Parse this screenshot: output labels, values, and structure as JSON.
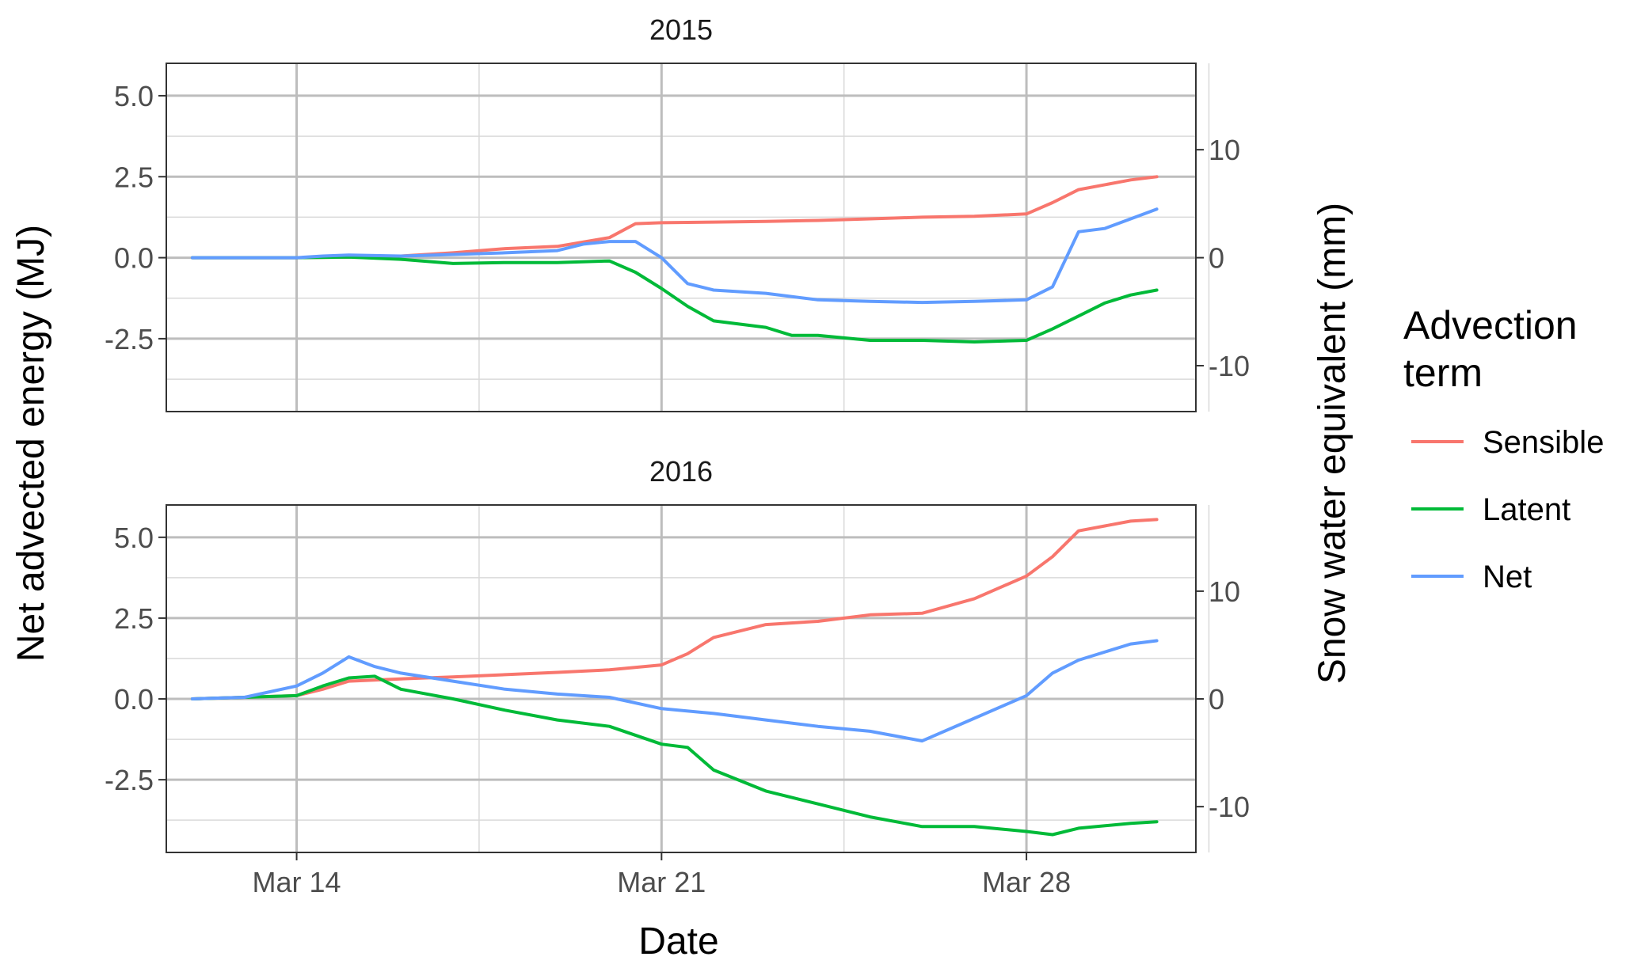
{
  "chart_data": {
    "type": "line",
    "xlabel": "Date",
    "ylabel": "Net advected energy (MJ)",
    "y2label": "Snow water equivalent (mm)",
    "x_ticks": [
      "Mar 14",
      "Mar 21",
      "Mar 28"
    ],
    "xlim": [
      "2000-03-11 12:00",
      "2000-03-31 06:00"
    ],
    "ylim": [
      -4.75,
      6.0
    ],
    "y_ticks": [
      "-2.5",
      "0.0",
      "2.5",
      "5.0"
    ],
    "y2_ticks": [
      "-10",
      "0",
      "10"
    ],
    "y2_scale_mm_per_MJ": 3.0,
    "grid": true,
    "legend": {
      "title": "Advection term",
      "title_lines": [
        "Advection",
        "term"
      ],
      "placement": "right",
      "entries": [
        {
          "label": "Sensible",
          "color": "#F8766D"
        },
        {
          "label": "Latent",
          "color": "#00BA38"
        },
        {
          "label": "Net",
          "color": "#619CFF"
        }
      ]
    },
    "panels": [
      {
        "title": "2015",
        "series": [
          {
            "name": "Sensible",
            "color": "#F8766D",
            "x": [
              "03-12",
              "03-13",
              "03-14",
              "03-15",
              "03-16",
              "03-17",
              "03-18",
              "03-19",
              "03-20",
              "03-20 12:00",
              "03-21",
              "03-22",
              "03-23",
              "03-24",
              "03-25",
              "03-26",
              "03-27",
              "03-28",
              "03-28 12:00",
              "03-29",
              "03-30",
              "03-30 12:00"
            ],
            "values": [
              0.0,
              0.0,
              0.0,
              0.02,
              0.05,
              0.15,
              0.28,
              0.35,
              0.62,
              1.05,
              1.08,
              1.1,
              1.12,
              1.15,
              1.2,
              1.25,
              1.28,
              1.35,
              1.7,
              2.1,
              2.4,
              2.5
            ]
          },
          {
            "name": "Latent",
            "color": "#00BA38",
            "x": [
              "03-12",
              "03-13",
              "03-14",
              "03-15",
              "03-16",
              "03-17",
              "03-18",
              "03-19",
              "03-20",
              "03-20 12:00",
              "03-21",
              "03-21 12:00",
              "03-22",
              "03-23",
              "03-23 12:00",
              "03-24",
              "03-25",
              "03-26",
              "03-27",
              "03-28",
              "03-28 12:00",
              "03-29",
              "03-29 12:00",
              "03-30",
              "03-30 12:00"
            ],
            "values": [
              0.0,
              0.0,
              0.0,
              0.02,
              -0.05,
              -0.18,
              -0.15,
              -0.15,
              -0.1,
              -0.45,
              -0.95,
              -1.5,
              -1.95,
              -2.15,
              -2.4,
              -2.4,
              -2.55,
              -2.55,
              -2.6,
              -2.55,
              -2.2,
              -1.8,
              -1.4,
              -1.15,
              -1.0
            ]
          },
          {
            "name": "Net",
            "color": "#619CFF",
            "x": [
              "03-12",
              "03-13",
              "03-14",
              "03-14 12:00",
              "03-15",
              "03-16",
              "03-17",
              "03-18",
              "03-19",
              "03-19 12:00",
              "03-20",
              "03-20 12:00",
              "03-21",
              "03-21 12:00",
              "03-22",
              "03-23",
              "03-24",
              "03-25",
              "03-26",
              "03-27",
              "03-28",
              "03-28 12:00",
              "03-29",
              "03-29 12:00",
              "03-30",
              "03-30 12:00"
            ],
            "values": [
              0.0,
              0.0,
              0.0,
              0.05,
              0.08,
              0.05,
              0.1,
              0.15,
              0.22,
              0.42,
              0.5,
              0.5,
              0.0,
              -0.8,
              -1.0,
              -1.1,
              -1.3,
              -1.35,
              -1.38,
              -1.35,
              -1.3,
              -0.9,
              0.8,
              0.9,
              1.2,
              1.5
            ]
          }
        ]
      },
      {
        "title": "2016",
        "series": [
          {
            "name": "Sensible",
            "color": "#F8766D",
            "x": [
              "03-12",
              "03-13",
              "03-14",
              "03-14 12:00",
              "03-15",
              "03-16",
              "03-17",
              "03-18",
              "03-19",
              "03-20",
              "03-21",
              "03-21 12:00",
              "03-22",
              "03-23",
              "03-24",
              "03-25",
              "03-26",
              "03-27",
              "03-28",
              "03-28 12:00",
              "03-29",
              "03-30",
              "03-30 12:00"
            ],
            "values": [
              0.0,
              0.05,
              0.1,
              0.3,
              0.55,
              0.62,
              0.68,
              0.75,
              0.82,
              0.9,
              1.05,
              1.4,
              1.9,
              2.3,
              2.4,
              2.6,
              2.65,
              3.1,
              3.8,
              4.4,
              5.2,
              5.5,
              5.55
            ]
          },
          {
            "name": "Latent",
            "color": "#00BA38",
            "x": [
              "03-12",
              "03-13",
              "03-14",
              "03-14 12:00",
              "03-15",
              "03-15 12:00",
              "03-16",
              "03-17",
              "03-18",
              "03-19",
              "03-20",
              "03-21",
              "03-21 12:00",
              "03-22",
              "03-23",
              "03-24",
              "03-25",
              "03-26",
              "03-27",
              "03-28",
              "03-28 12:00",
              "03-29",
              "03-30",
              "03-30 12:00"
            ],
            "values": [
              0.0,
              0.05,
              0.1,
              0.4,
              0.65,
              0.7,
              0.3,
              0.0,
              -0.35,
              -0.65,
              -0.85,
              -1.4,
              -1.5,
              -2.2,
              -2.85,
              -3.25,
              -3.65,
              -3.95,
              -3.95,
              -4.1,
              -4.2,
              -4.0,
              -3.85,
              -3.8
            ]
          },
          {
            "name": "Net",
            "color": "#619CFF",
            "x": [
              "03-12",
              "03-13",
              "03-14",
              "03-14 12:00",
              "03-15",
              "03-15 12:00",
              "03-16",
              "03-17",
              "03-18",
              "03-19",
              "03-20",
              "03-21",
              "03-22",
              "03-23",
              "03-24",
              "03-25",
              "03-26",
              "03-27",
              "03-28",
              "03-28 12:00",
              "03-29",
              "03-30",
              "03-30 12:00"
            ],
            "values": [
              0.0,
              0.05,
              0.4,
              0.8,
              1.3,
              1.0,
              0.8,
              0.55,
              0.3,
              0.15,
              0.05,
              -0.3,
              -0.45,
              -0.65,
              -0.85,
              -1.0,
              -1.3,
              -0.6,
              0.1,
              0.8,
              1.2,
              1.7,
              1.8
            ]
          }
        ]
      }
    ]
  }
}
